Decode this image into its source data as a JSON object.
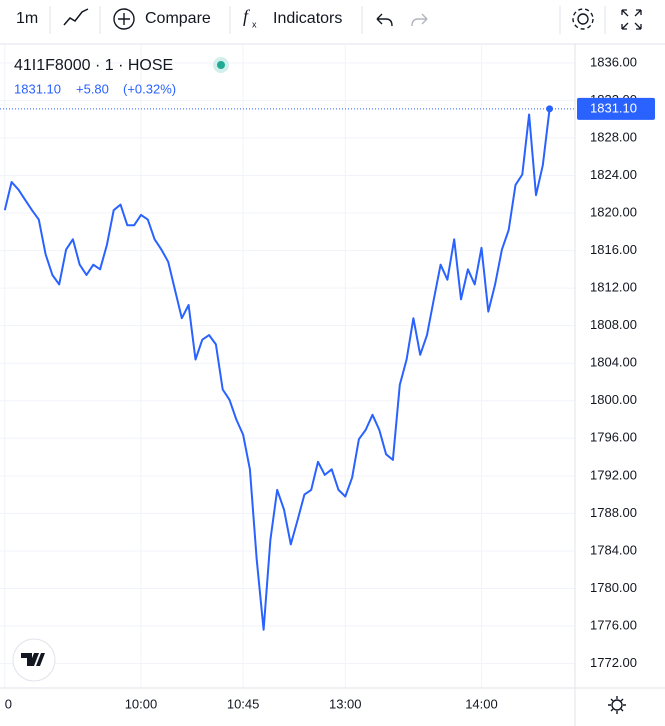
{
  "toolbar": {
    "interval": "1m",
    "compare": "Compare",
    "indicators": "Indicators"
  },
  "chart_data": {
    "type": "line",
    "symbol": "41I1F8000 · 1 · HOSE",
    "quote": {
      "last": "1831.10",
      "change": "+5.80",
      "change_pct": "(+0.32%)"
    },
    "last_price_label": "1831.10",
    "color": "#2962ff",
    "x": [
      -60,
      -57,
      -54,
      -51,
      -48,
      -45,
      -42,
      -39,
      -36,
      -33,
      -30,
      -27,
      -24,
      -21,
      -18,
      -15,
      -12,
      -9,
      -6,
      -3,
      0,
      3,
      6,
      9,
      12,
      15,
      18,
      21,
      24,
      27,
      30,
      33,
      36,
      39,
      42,
      45,
      48,
      51,
      54,
      57,
      60,
      63,
      66,
      69,
      72,
      75,
      78,
      81,
      84,
      87,
      90,
      93,
      96,
      99,
      102,
      105,
      108,
      111,
      114,
      117,
      120,
      123,
      126,
      129,
      132,
      135,
      138,
      141,
      144,
      147,
      150,
      153,
      156,
      159,
      162,
      165,
      168,
      171,
      174,
      177,
      180
    ],
    "values": [
      1820.3,
      1823.3,
      1822.5,
      1821.4,
      1820.3,
      1819.3,
      1815.6,
      1813.4,
      1812.4,
      1816.1,
      1817.2,
      1814.5,
      1813.4,
      1814.5,
      1814.0,
      1816.6,
      1820.3,
      1820.9,
      1818.7,
      1818.7,
      1819.8,
      1819.3,
      1817.2,
      1816.1,
      1814.8,
      1811.8,
      1808.8,
      1810.2,
      1804.4,
      1806.5,
      1807.0,
      1806.0,
      1801.2,
      1800.1,
      1798.0,
      1796.4,
      1792.7,
      1783.1,
      1775.6,
      1785.2,
      1790.5,
      1788.4,
      1784.7,
      1787.3,
      1790.0,
      1790.5,
      1793.5,
      1792.1,
      1792.7,
      1790.5,
      1789.8,
      1791.8,
      1795.9,
      1796.9,
      1798.5,
      1796.9,
      1794.3,
      1793.7,
      1801.7,
      1804.4,
      1808.8,
      1804.9,
      1807.0,
      1810.8,
      1814.5,
      1812.9,
      1817.2,
      1810.8,
      1814.0,
      1812.4,
      1816.3,
      1809.5,
      1812.4,
      1816.1,
      1818.2,
      1823.0,
      1824.1,
      1830.5,
      1821.9,
      1825.1,
      1831.1
    ],
    "xlim": [
      -62.1,
      191.2
    ],
    "xticks": [
      {
        "value": -60,
        "label": "0"
      },
      {
        "value": 0,
        "label": "10:00"
      },
      {
        "value": 45,
        "label": "10:45"
      },
      {
        "value": 90,
        "label": "13:00"
      },
      {
        "value": 150,
        "label": "14:00"
      }
    ],
    "ylim": [
      1769.4,
      1837.9
    ],
    "yticks": [
      {
        "value": 1772,
        "label": "1772.00"
      },
      {
        "value": 1776,
        "label": "1776.00"
      },
      {
        "value": 1780,
        "label": "1780.00"
      },
      {
        "value": 1784,
        "label": "1784.00"
      },
      {
        "value": 1788,
        "label": "1788.00"
      },
      {
        "value": 1792,
        "label": "1792.00"
      },
      {
        "value": 1796,
        "label": "1796.00"
      },
      {
        "value": 1800,
        "label": "1800.00"
      },
      {
        "value": 1804,
        "label": "1804.00"
      },
      {
        "value": 1808,
        "label": "1808.00"
      },
      {
        "value": 1812,
        "label": "1812.00"
      },
      {
        "value": 1816,
        "label": "1816.00"
      },
      {
        "value": 1820,
        "label": "1820.00"
      },
      {
        "value": 1824,
        "label": "1824.00"
      },
      {
        "value": 1828,
        "label": "1828.00"
      },
      {
        "value": 1832,
        "label": "1832.00"
      },
      {
        "value": 1836,
        "label": "1836.00"
      }
    ],
    "grid": true
  }
}
